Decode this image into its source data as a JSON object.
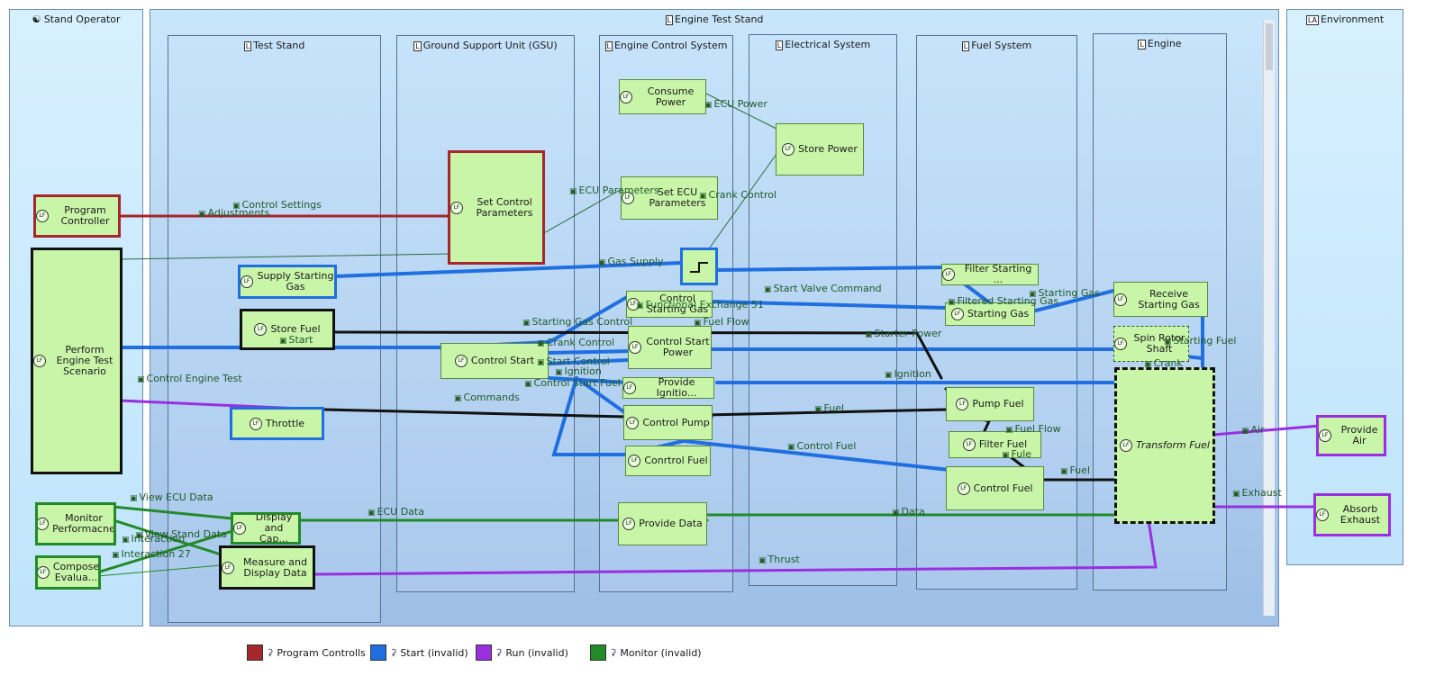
{
  "swimlanes": {
    "stand_operator": "Stand Operator",
    "engine_test_stand": "Engine Test Stand",
    "environment": "Environment",
    "test_stand": "Test Stand",
    "gsu": "Ground Support Unit (GSU)",
    "ecs": "Engine Control System",
    "electrical": "Electrical System",
    "fuel_system": "Fuel System",
    "engine": "Engine"
  },
  "functions": {
    "program_controller": "Program Controller",
    "perform_scenario": "Perform Engine Test Scenario",
    "monitor_perf": "Monitor Performacne",
    "compose_eval": "Compose Evalua...",
    "supply_gas": "Supply Starting Gas",
    "store_fuel": "Store Fuel",
    "throttle": "Throttle",
    "display_capture": "Display and Cap...",
    "measure_display": "Measure and Display Data",
    "set_control_params": "Set Control Parameters",
    "control_start": "Control Start",
    "consume_power": "Consume Power",
    "set_ecu_params": "Set ECU Parameters",
    "control_starting_gas": "Control Starting Gas",
    "control_start_power": "Control Start Power",
    "provide_ignition": "Provide Ignitio...",
    "control_pump": "Control Pump",
    "control_fuel_ecs": "Conrtrol Fuel",
    "provide_data": "Provide Data",
    "store_power": "Store Power",
    "filter_starting": "Filter Starting ...",
    "starting_gas_fs": "Starting Gas",
    "pump_fuel": "Pump Fuel",
    "filter_fuel": "Filter Fuel",
    "control_fuel_fs": "Control Fuel",
    "receive_starting_gas": "Receive Starting Gas",
    "spin_rotor_shaft": "Spin Rotor Shaft",
    "transform_fuel": "Transform Fuel",
    "provide_air": "Provide Air",
    "absorb_exhaust": "Absorb Exhaust"
  },
  "flows": {
    "control_settings": "Control Settings",
    "adjustments": "Adjustments",
    "ecu_parameters": "ECU Parameters",
    "ecu_power": "ECU Power",
    "crank_control": "Crank Control",
    "gas_supply": "Gas Supply",
    "start_valve_command": "Start Valve Command",
    "starting_gas": "Starting Gas",
    "function_exchange": "Functional Exchange 51",
    "filtered_starting_gas": "Filtered Starting Gas",
    "fuel_flow": "Fuel Flow",
    "starting_gas_control": "Starting Gas Control",
    "start": "Start",
    "starter_power": "Starter Power",
    "starting_fuel": "Starting Fuel",
    "crank_control2": "Crank Control",
    "start_control": "Start Control",
    "ignition": "Ignition",
    "ignition2": "Ignition",
    "control_start_fuel": "Control Start Fuel",
    "crank": "Crank",
    "control_engine_test": "Control Engine Test",
    "commands": "Commands",
    "fuel": "Fuel",
    "fuel_flow2": "Fuel Flow",
    "fule": "Fule",
    "control_fuel": "Control Fuel",
    "fuel2": "Fuel",
    "air": "Air",
    "exhaust": "Exhaust",
    "view_ecu_data": "View ECU Data",
    "view_stand_data": "View Stand Data",
    "interaction_x": "Interaction",
    "interaction_27": "Interaction 27",
    "ecu_data": "ECU Data",
    "data": "Data",
    "thrust": "Thrust"
  },
  "legend": [
    {
      "label": "Program Controlls",
      "color": "#a5262b"
    },
    {
      "label": "Start (invalid)",
      "color": "#1f6fe0"
    },
    {
      "label": "Run (invalid)",
      "color": "#9a2fe0"
    },
    {
      "label": "Monitor (invalid)",
      "color": "#238a2a"
    }
  ]
}
